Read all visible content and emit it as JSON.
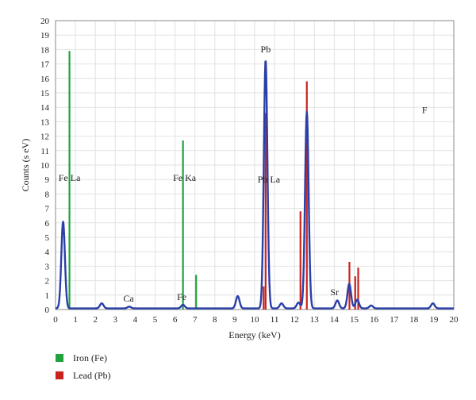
{
  "chart_data": {
    "type": "line",
    "xlabel": "Energy (keV)",
    "ylabel": "Counts (s eV)",
    "xlim": [
      0,
      20
    ],
    "ylim": [
      0,
      20
    ],
    "x_ticks": [
      0,
      1,
      2,
      3,
      4,
      5,
      6,
      7,
      8,
      9,
      10,
      11,
      12,
      13,
      14,
      15,
      16,
      17,
      18,
      19,
      20
    ],
    "y_ticks": [
      0,
      1,
      2,
      3,
      4,
      5,
      6,
      7,
      8,
      9,
      10,
      11,
      12,
      13,
      14,
      15,
      16,
      17,
      18,
      19,
      20
    ],
    "grid": true,
    "legend_position": "bottom-left",
    "spectrum": {
      "color": "#2a3fa8",
      "baseline": 0.08,
      "peaks": [
        {
          "x": 0.38,
          "y": 6.0
        },
        {
          "x": 2.32,
          "y": 0.35
        },
        {
          "x": 3.7,
          "y": 0.12
        },
        {
          "x": 6.4,
          "y": 0.25
        },
        {
          "x": 9.15,
          "y": 0.85
        },
        {
          "x": 10.55,
          "y": 17.2
        },
        {
          "x": 11.35,
          "y": 0.35
        },
        {
          "x": 12.2,
          "y": 0.4
        },
        {
          "x": 12.62,
          "y": 13.6
        },
        {
          "x": 14.15,
          "y": 0.55
        },
        {
          "x": 14.75,
          "y": 1.7
        },
        {
          "x": 15.15,
          "y": 0.6
        },
        {
          "x": 15.85,
          "y": 0.2
        },
        {
          "x": 18.95,
          "y": 0.35
        }
      ]
    },
    "series": [
      {
        "name": "Iron (Fe)",
        "color": "#1fa33a",
        "lines": [
          {
            "x": 0.7,
            "y": 17.9
          },
          {
            "x": 6.4,
            "y": 11.7
          },
          {
            "x": 7.06,
            "y": 2.4
          }
        ]
      },
      {
        "name": "Lead (Pb)",
        "color": "#c8231e",
        "lines": [
          {
            "x": 10.45,
            "y": 1.6
          },
          {
            "x": 10.55,
            "y": 13.6
          },
          {
            "x": 12.3,
            "y": 6.8
          },
          {
            "x": 12.62,
            "y": 15.8
          },
          {
            "x": 14.76,
            "y": 3.3
          },
          {
            "x": 15.05,
            "y": 2.3
          },
          {
            "x": 15.2,
            "y": 2.9
          }
        ]
      }
    ],
    "annotations": [
      {
        "text": "Fe  La",
        "x": 0.15,
        "y": 8.9
      },
      {
        "text": "Fe  Ka",
        "x": 5.9,
        "y": 8.9
      },
      {
        "text": "Pb",
        "x": 10.3,
        "y": 17.8
      },
      {
        "text": "Pb La",
        "x": 10.15,
        "y": 8.8
      },
      {
        "text": "Ca",
        "x": 3.4,
        "y": 0.55
      },
      {
        "text": "Fe",
        "x": 6.1,
        "y": 0.65
      },
      {
        "text": "Sr",
        "x": 13.8,
        "y": 1.0
      },
      {
        "text": "F",
        "x": 18.4,
        "y": 13.6
      }
    ]
  }
}
